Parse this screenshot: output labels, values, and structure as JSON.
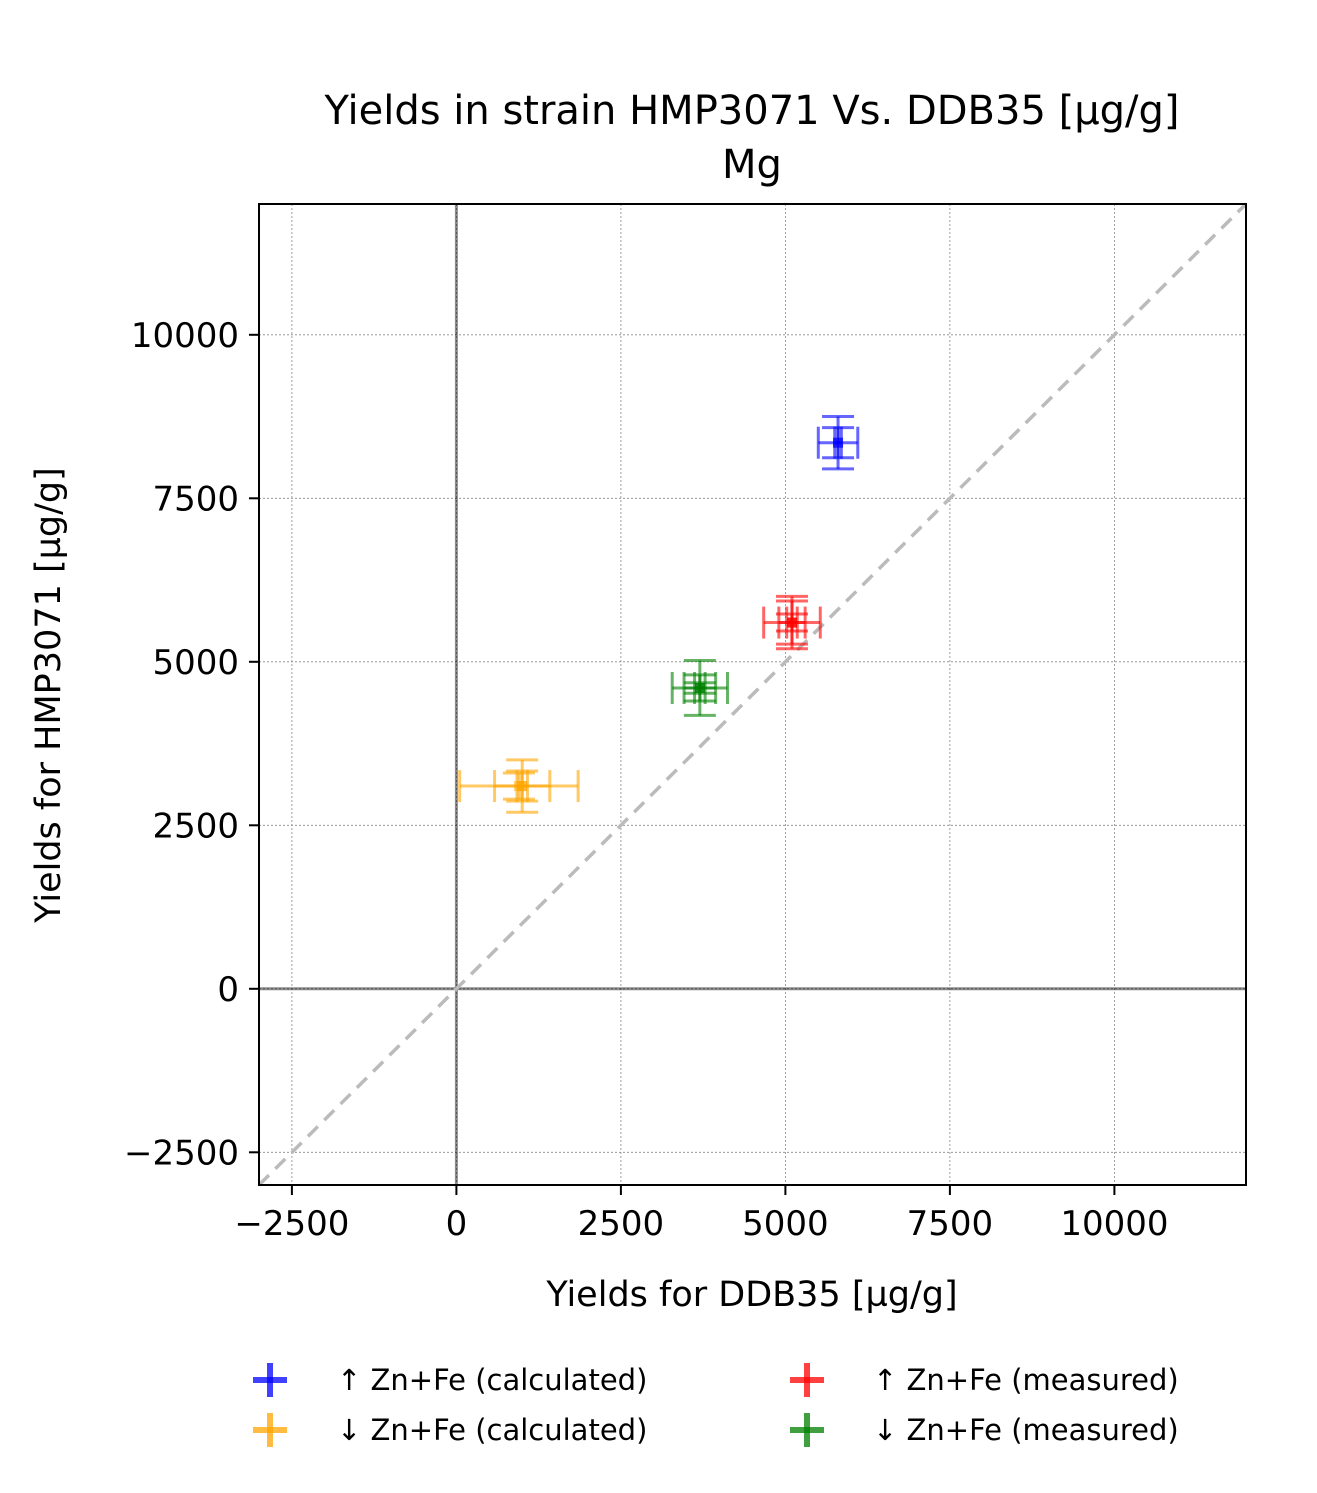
{
  "chart_data": {
    "type": "scatter",
    "title": "Yields in strain HMP3071 Vs. DDB35 [µg/g]",
    "subtitle": "Mg",
    "xlabel": "Yields for DDB35 [µg/g]",
    "ylabel": "Yields for HMP3071 [µg/g]",
    "xlim": [
      -3000,
      12000
    ],
    "ylim": [
      -3000,
      12000
    ],
    "x_ticks": [
      {
        "value": -2500,
        "label": "−2500"
      },
      {
        "value": 0,
        "label": "0"
      },
      {
        "value": 2500,
        "label": "2500"
      },
      {
        "value": 5000,
        "label": "5000"
      },
      {
        "value": 7500,
        "label": "7500"
      },
      {
        "value": 10000,
        "label": "10000"
      }
    ],
    "y_ticks": [
      {
        "value": -2500,
        "label": "−2500"
      },
      {
        "value": 0,
        "label": "0"
      },
      {
        "value": 2500,
        "label": "2500"
      },
      {
        "value": 5000,
        "label": "5000"
      },
      {
        "value": 7500,
        "label": "7500"
      },
      {
        "value": 10000,
        "label": "10000"
      }
    ],
    "grid": true,
    "diagonal": true,
    "legend_position": "bottom",
    "series": [
      {
        "name": "↑ Zn+Fe (calculated)",
        "color": "#0000ff",
        "points": [
          {
            "x": 5800,
            "y": 8350,
            "xerr": 300,
            "yerr": 230
          },
          {
            "x": 5800,
            "y": 8350,
            "xerr": 50,
            "yerr": 400
          }
        ]
      },
      {
        "name": "↓ Zn+Fe (calculated)",
        "color": "#ffa500",
        "points": [
          {
            "x": 950,
            "y": 3100,
            "xerr": 900,
            "yerr": 200
          },
          {
            "x": 1000,
            "y": 3100,
            "xerr": 420,
            "yerr": 230
          },
          {
            "x": 1000,
            "y": 3100,
            "xerr": 80,
            "yerr": 400
          }
        ]
      },
      {
        "name": "↑ Zn+Fe (measured)",
        "color": "#ff0000",
        "points": [
          {
            "x": 5100,
            "y": 5600,
            "xerr": 430,
            "yerr": 330
          },
          {
            "x": 5100,
            "y": 5600,
            "xerr": 200,
            "yerr": 130
          },
          {
            "x": 5100,
            "y": 5600,
            "xerr": 80,
            "yerr": 400
          }
        ]
      },
      {
        "name": "↓ Zn+Fe (measured)",
        "color": "#008000",
        "points": [
          {
            "x": 3700,
            "y": 4600,
            "xerr": 420,
            "yerr": 80
          },
          {
            "x": 3700,
            "y": 4600,
            "xerr": 240,
            "yerr": 420
          },
          {
            "x": 3700,
            "y": 4600,
            "xerr": 80,
            "yerr": 200
          }
        ]
      }
    ]
  }
}
